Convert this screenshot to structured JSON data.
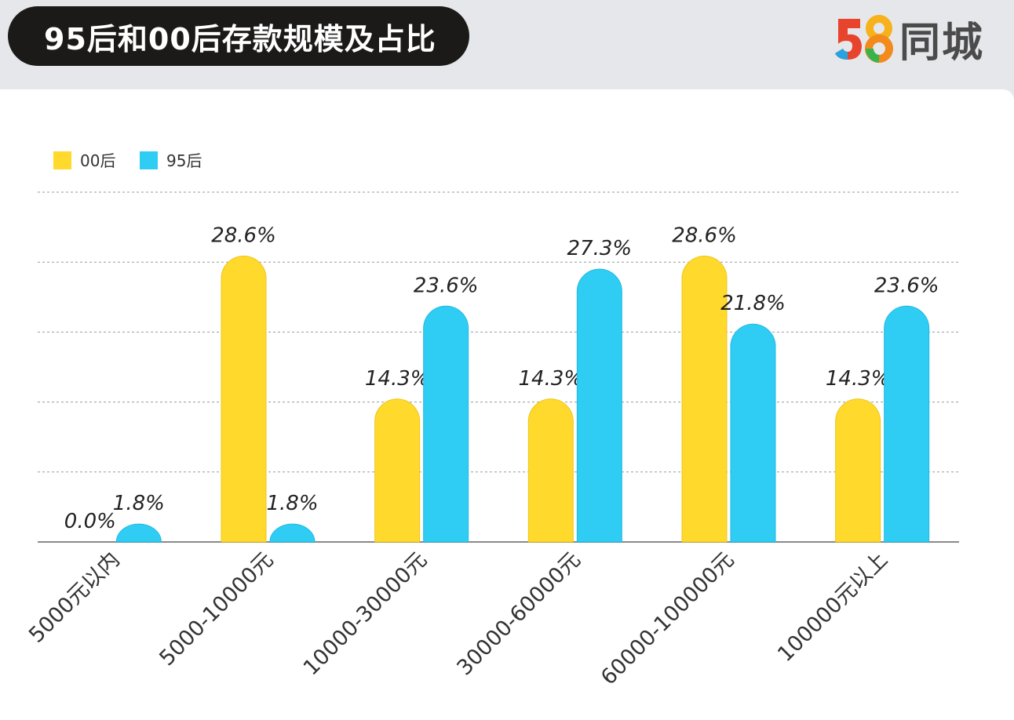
{
  "header": {
    "title": "95后和00后存款规模及占比"
  },
  "brand": {
    "logo_digits": "58",
    "logo_text": "同城",
    "digit_colors": [
      "#e8432d",
      "#27a3e0",
      "#f7b21b",
      "#3bb24a"
    ]
  },
  "chart_data": {
    "type": "bar",
    "title": "95后和00后存款规模及占比",
    "categories": [
      "5000元以内",
      "5000-10000元",
      "10000-30000元",
      "30000-60000元",
      "60000-100000元",
      "100000元以上"
    ],
    "series": [
      {
        "name": "00后",
        "color": "#ffd92b",
        "values": [
          0.0,
          28.6,
          14.3,
          14.3,
          28.6,
          14.3
        ],
        "labels": [
          "0.0%",
          "28.6%",
          "14.3%",
          "14.3%",
          "28.6%",
          "14.3%"
        ]
      },
      {
        "name": "95后",
        "color": "#2fcdf4",
        "values": [
          1.8,
          1.8,
          23.6,
          27.3,
          21.8,
          23.6
        ],
        "labels": [
          "1.8%",
          "1.8%",
          "23.6%",
          "27.3%",
          "21.8%",
          "23.6%"
        ]
      }
    ],
    "ylim": [
      0,
      35
    ],
    "grid": true,
    "legend_position": "top-left",
    "xlabel": "",
    "ylabel": ""
  }
}
